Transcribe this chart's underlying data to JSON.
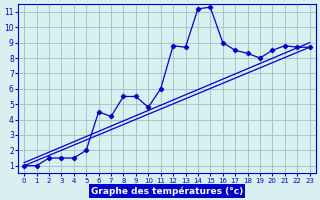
{
  "xlabel": "Graphe des températures (°c)",
  "bg_color": "#d8f0f0",
  "grid_color": "#a0c8c8",
  "line_color": "#0000cc",
  "x_data": [
    0,
    1,
    2,
    3,
    4,
    5,
    6,
    7,
    8,
    9,
    10,
    11,
    12,
    13,
    14,
    15,
    16,
    17,
    18,
    19,
    20,
    21,
    22,
    23
  ],
  "y_main": [
    1.0,
    1.0,
    1.5,
    1.5,
    1.5,
    2.0,
    4.5,
    4.2,
    5.5,
    5.5,
    4.8,
    6.0,
    8.8,
    8.7,
    11.2,
    11.3,
    9.0,
    8.5,
    8.3,
    8.0,
    8.5,
    8.8,
    8.7,
    8.7
  ],
  "trend1_x": [
    0,
    23
  ],
  "trend1_y": [
    1.0,
    8.7
  ],
  "trend2_x": [
    0,
    23
  ],
  "trend2_y": [
    1.2,
    9.0
  ],
  "xlim": [
    -0.5,
    23.5
  ],
  "ylim": [
    0.5,
    11.5
  ],
  "xticks": [
    0,
    1,
    2,
    3,
    4,
    5,
    6,
    7,
    8,
    9,
    10,
    11,
    12,
    13,
    14,
    15,
    16,
    17,
    18,
    19,
    20,
    21,
    22,
    23
  ],
  "yticks": [
    1,
    2,
    3,
    4,
    5,
    6,
    7,
    8,
    9,
    10,
    11
  ]
}
